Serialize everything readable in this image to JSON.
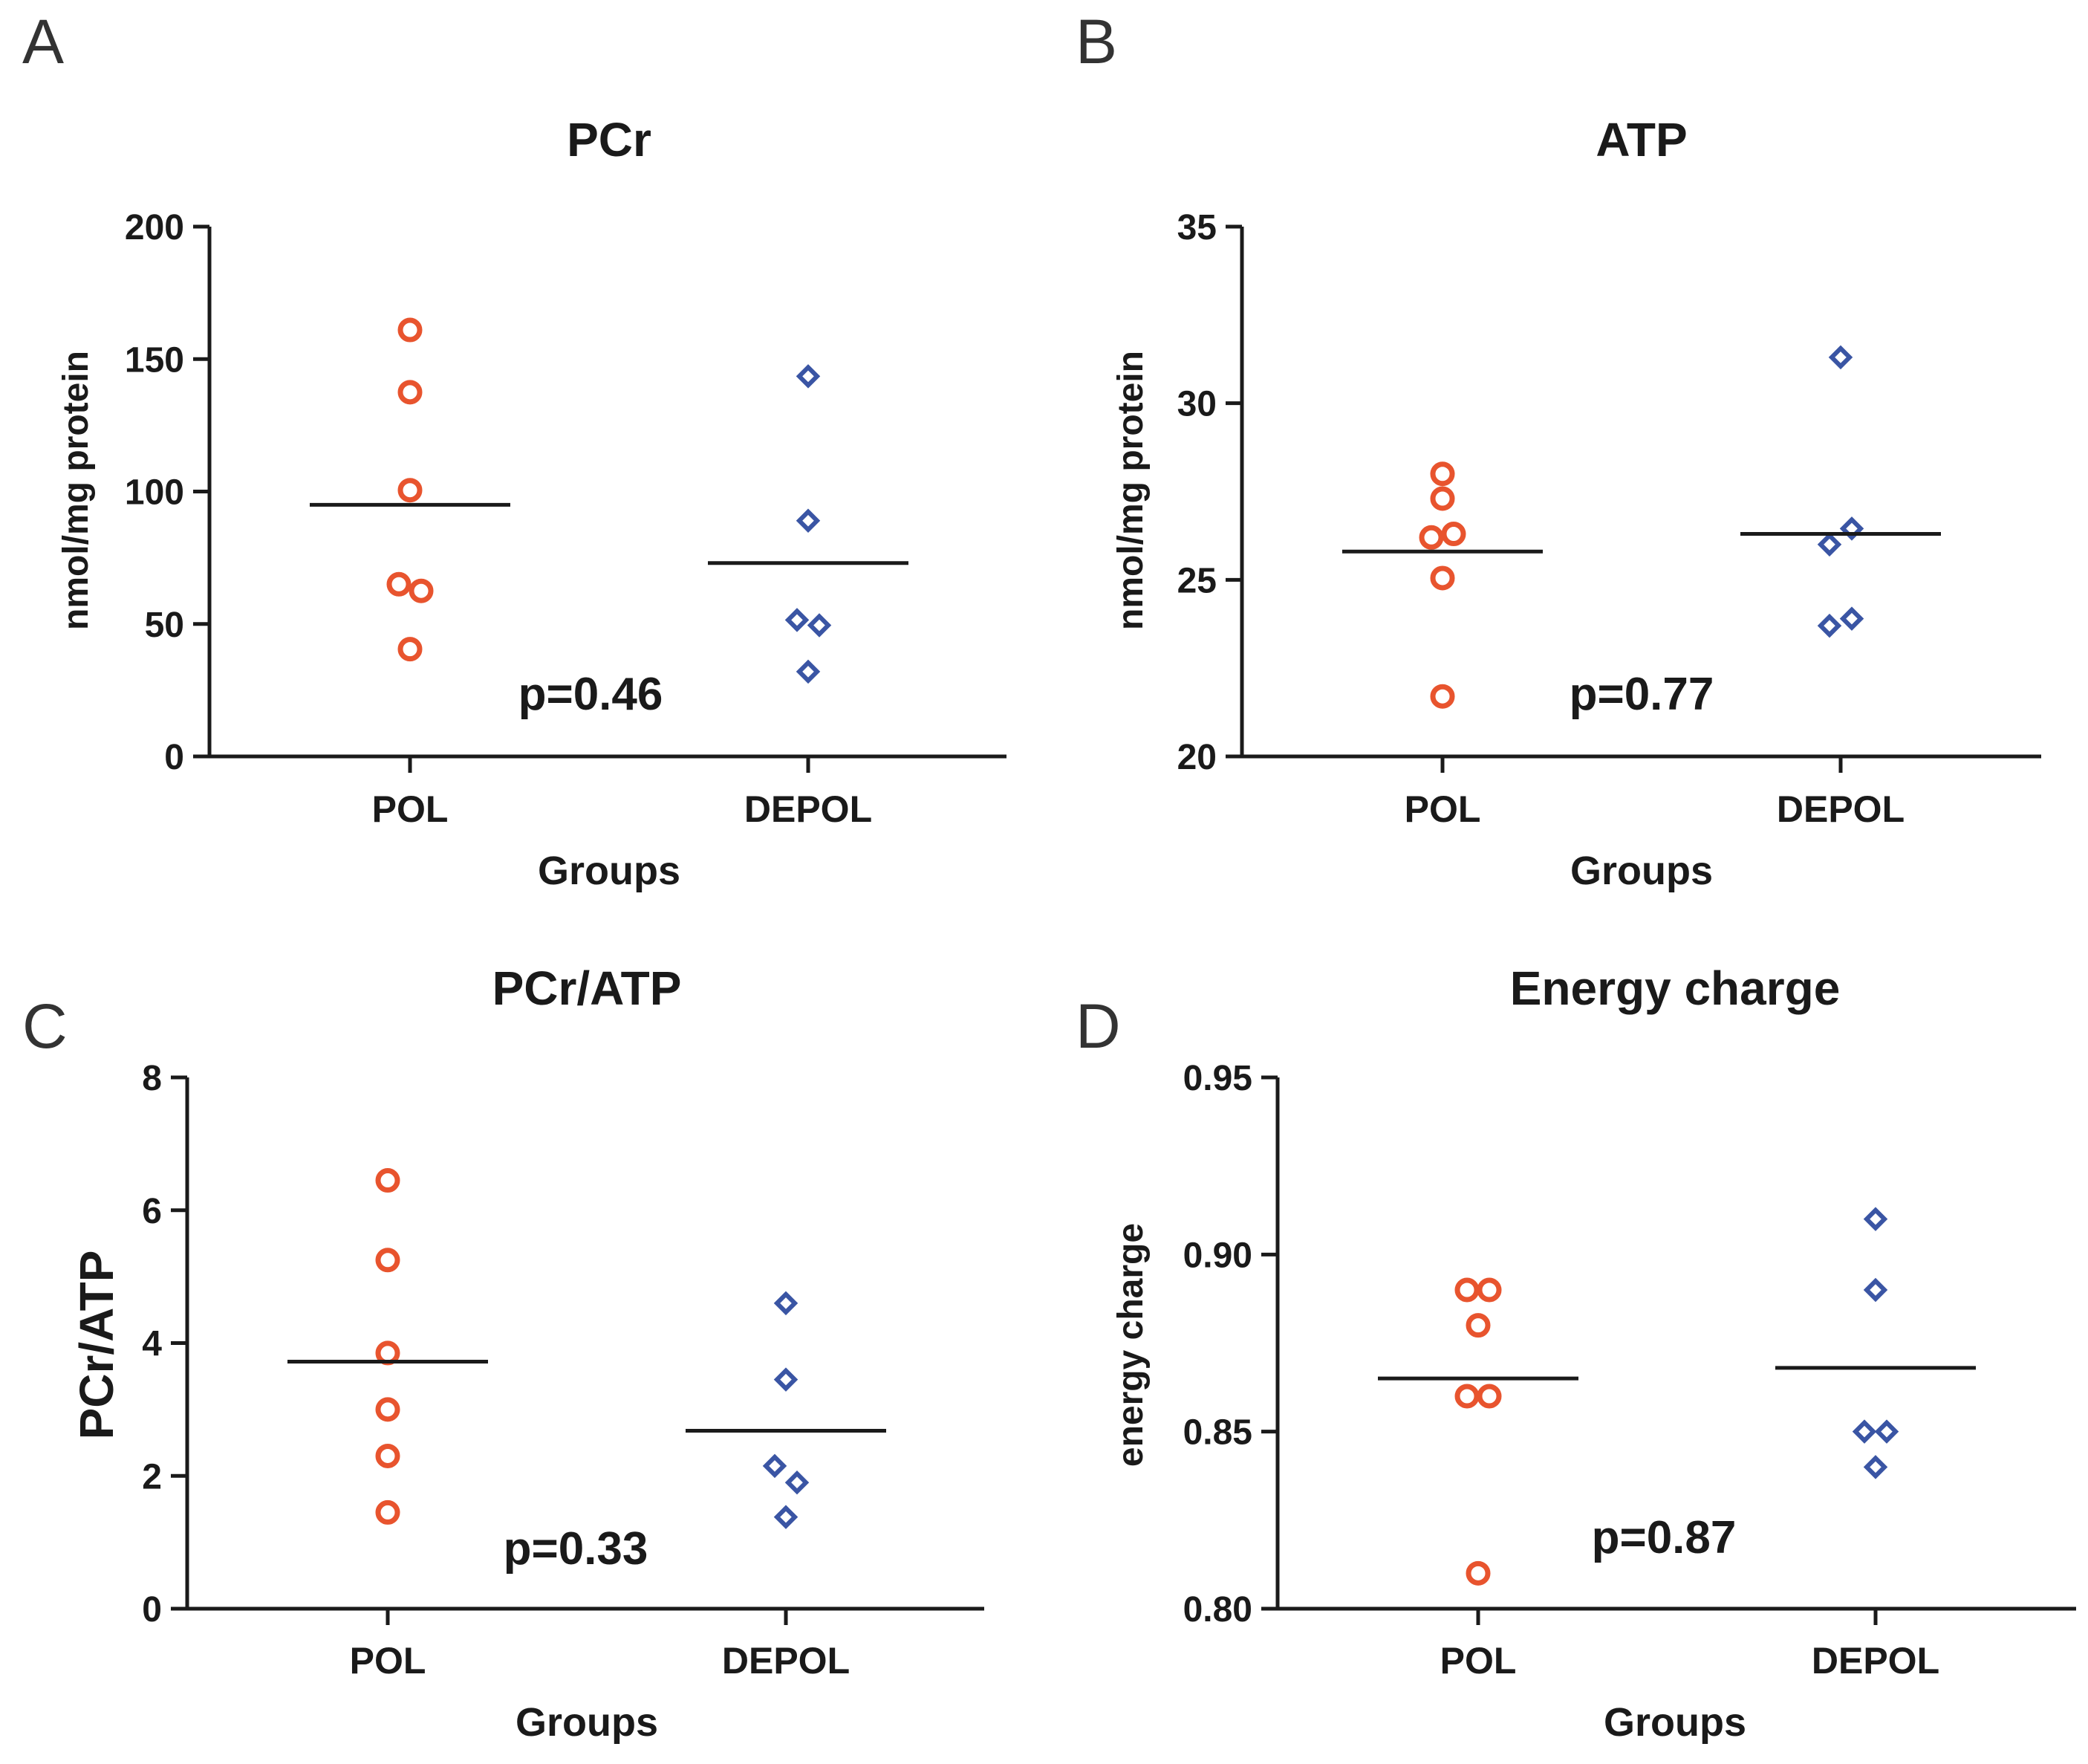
{
  "colors": {
    "pol": "#e8542e",
    "depol": "#3a55a4",
    "axis": "#1a1a1a"
  },
  "panels": [
    {
      "letter": "A",
      "chart_data": {
        "type": "scatter",
        "title": "PCr",
        "xlabel": "Groups",
        "ylabel": "nmol/mg protein",
        "categories": [
          "POL",
          "DEPOL"
        ],
        "ylim": [
          0,
          200
        ],
        "yticks": [
          "0",
          "50",
          "100",
          "150",
          "200"
        ],
        "series": [
          {
            "name": "POL",
            "marker": "circle",
            "points": [
              [
                0,
                161
              ],
              [
                0,
                137.5
              ],
              [
                0,
                100.5
              ],
              [
                -0.05,
                65
              ],
              [
                0.05,
                62.5
              ],
              [
                0,
                40.5
              ]
            ],
            "mean": 95
          },
          {
            "name": "DEPOL",
            "marker": "diamond",
            "points": [
              [
                0,
                143.5
              ],
              [
                0,
                89
              ],
              [
                -0.05,
                51.5
              ],
              [
                0.05,
                49.5
              ],
              [
                0,
                32
              ]
            ],
            "mean": 73
          }
        ],
        "annotation": "p=0.46"
      }
    },
    {
      "letter": "B",
      "chart_data": {
        "type": "scatter",
        "title": "ATP",
        "xlabel": "Groups",
        "ylabel": "nmol/mg protein",
        "categories": [
          "POL",
          "DEPOL"
        ],
        "ylim": [
          20,
          35
        ],
        "yticks": [
          "20",
          "25",
          "30",
          "35"
        ],
        "series": [
          {
            "name": "POL",
            "marker": "circle",
            "points": [
              [
                0,
                28
              ],
              [
                0,
                27.3
              ],
              [
                -0.05,
                26.2
              ],
              [
                0.05,
                26.3
              ],
              [
                0,
                25.05
              ],
              [
                0,
                21.7
              ]
            ],
            "mean": 25.8
          },
          {
            "name": "DEPOL",
            "marker": "diamond",
            "points": [
              [
                0,
                31.3
              ],
              [
                -0.05,
                26
              ],
              [
                0.05,
                26.45
              ],
              [
                -0.05,
                23.7
              ],
              [
                0.05,
                23.9
              ]
            ],
            "mean": 26.3
          }
        ],
        "annotation": "p=0.77"
      }
    },
    {
      "letter": "C",
      "chart_data": {
        "type": "scatter",
        "title": "PCr/ATP",
        "xlabel": "Groups",
        "ylabel": "PCr/ATP",
        "categories": [
          "POL",
          "DEPOL"
        ],
        "ylim": [
          0,
          8
        ],
        "yticks": [
          "0",
          "2",
          "4",
          "6",
          "8"
        ],
        "series": [
          {
            "name": "POL",
            "marker": "circle",
            "points": [
              [
                0,
                6.45
              ],
              [
                0,
                5.25
              ],
              [
                0,
                3.85
              ],
              [
                0,
                3
              ],
              [
                0,
                2.3
              ],
              [
                0,
                1.45
              ]
            ],
            "mean": 3.72
          },
          {
            "name": "DEPOL",
            "marker": "diamond",
            "points": [
              [
                0,
                4.6
              ],
              [
                0,
                3.45
              ],
              [
                -0.05,
                2.15
              ],
              [
                0.05,
                1.9
              ],
              [
                0,
                1.38
              ]
            ],
            "mean": 2.68
          }
        ],
        "annotation": "p=0.33"
      }
    },
    {
      "letter": "D",
      "chart_data": {
        "type": "scatter",
        "title": "Energy charge",
        "xlabel": "Groups",
        "ylabel": "energy charge",
        "categories": [
          "POL",
          "DEPOL"
        ],
        "ylim": [
          0.8,
          0.95
        ],
        "yticks": [
          "0.80",
          "0.85",
          "0.90",
          "0.95"
        ],
        "series": [
          {
            "name": "POL",
            "marker": "circle",
            "points": [
              [
                -0.05,
                0.89
              ],
              [
                0.05,
                0.89
              ],
              [
                0,
                0.88
              ],
              [
                -0.05,
                0.86
              ],
              [
                0.05,
                0.86
              ],
              [
                0,
                0.81
              ]
            ],
            "mean": 0.865
          },
          {
            "name": "DEPOL",
            "marker": "diamond",
            "points": [
              [
                0,
                0.91
              ],
              [
                0,
                0.89
              ],
              [
                -0.05,
                0.85
              ],
              [
                0.05,
                0.85
              ],
              [
                0,
                0.84
              ]
            ],
            "mean": 0.868
          }
        ],
        "annotation": "p=0.87"
      }
    }
  ]
}
